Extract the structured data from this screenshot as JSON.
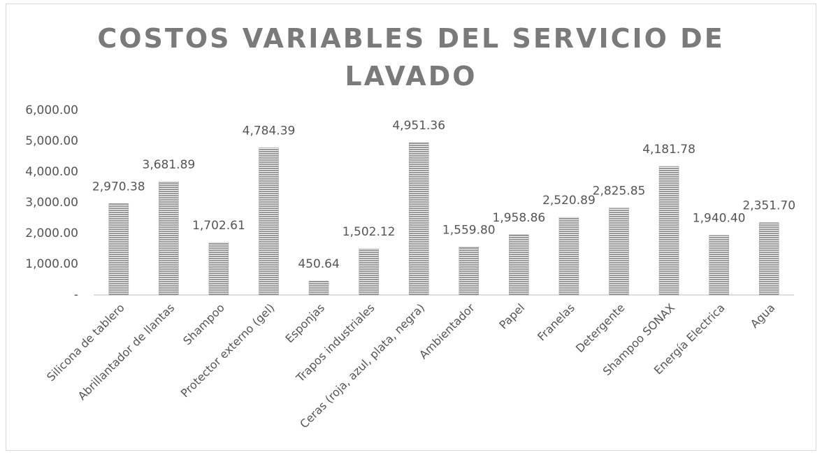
{
  "chart_data": {
    "type": "bar",
    "title": "COSTOS VARIABLES DEL SERVICIO DE LAVADO",
    "categories": [
      "Silicona de tablero",
      "Abrillantador de llantas",
      "Shampoo",
      "Protector externo (gel)",
      "Esponjas",
      "Trapos industriales",
      "Ceras (roja, azul, plata, negra)",
      "Ambientador",
      "Papel",
      "Franelas",
      "Detergente",
      "Shampoo SONAX",
      "Energía Electrica",
      "Agua"
    ],
    "values": [
      2970.38,
      3681.89,
      1702.61,
      4784.39,
      450.64,
      1502.12,
      4951.36,
      1559.8,
      1958.86,
      2520.89,
      2825.85,
      4181.78,
      1940.4,
      2351.7
    ],
    "value_labels": [
      "2,970.38",
      "3,681.89",
      "1,702.61",
      "4,784.39",
      "450.64",
      "1,502.12",
      "4,951.36",
      "1,559.80",
      "1,958.86",
      "2,520.89",
      "2,825.85",
      "4,181.78",
      "1,940.40",
      "2,351.70"
    ],
    "color": "#7f7f7f",
    "ylim": [
      0,
      6000
    ],
    "yticks": [
      {
        "value": 0,
        "label": "-"
      },
      {
        "value": 1000,
        "label": "1,000.00"
      },
      {
        "value": 2000,
        "label": "2,000.00"
      },
      {
        "value": 3000,
        "label": "3,000.00"
      },
      {
        "value": 4000,
        "label": "4,000.00"
      },
      {
        "value": 5000,
        "label": "5,000.00"
      },
      {
        "value": 6000,
        "label": "6,000.00"
      }
    ],
    "grid": false
  }
}
